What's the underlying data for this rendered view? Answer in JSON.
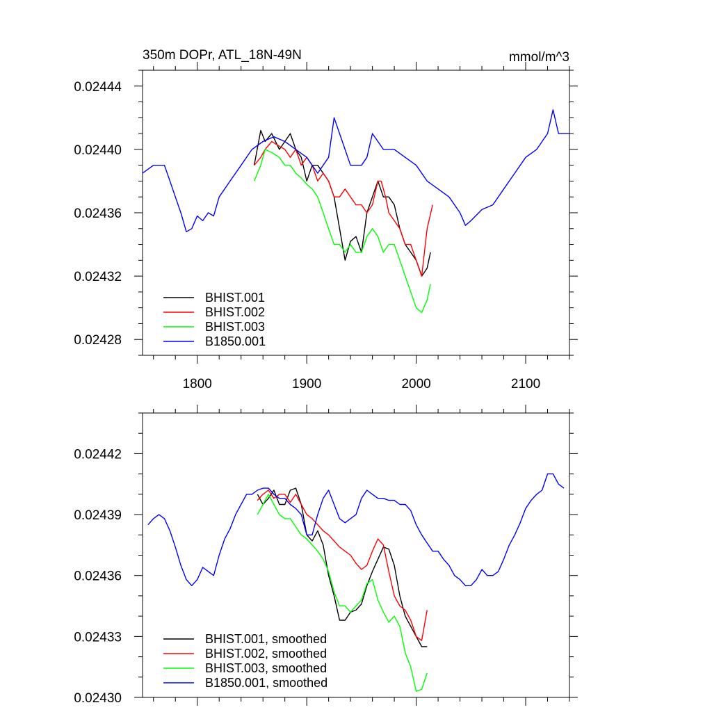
{
  "colors": {
    "BHIST.001": "#000000",
    "BHIST.002": "#ff0000",
    "BHIST.003": "#00ff00",
    "B1850.001": "#0000ff"
  },
  "chart_data": [
    {
      "type": "line",
      "title": "350m DOPr, ATL_18N-49N",
      "units": "mmol/m^3",
      "xlabel": "",
      "ylabel": "",
      "xlim": [
        1750,
        2140
      ],
      "ylim": [
        0.02427,
        0.02445
      ],
      "x_ticks": [
        1800,
        1900,
        2000,
        2100
      ],
      "x_tick_labels": [
        "1800",
        "1900",
        "2000",
        "2100"
      ],
      "y_ticks": [
        0.02428,
        0.02432,
        0.02436,
        0.0244,
        0.02444
      ],
      "y_tick_labels": [
        "0.02428",
        "0.02432",
        "0.02436",
        "0.02440",
        "0.02444"
      ],
      "grid": false,
      "legend_position": "bottom-left",
      "series": [
        {
          "name": "BHIST.001",
          "color": "#000000",
          "x": [
            1852,
            1858,
            1862,
            1868,
            1875,
            1880,
            1885,
            1890,
            1895,
            1900,
            1905,
            1910,
            1915,
            1920,
            1925,
            1930,
            1935,
            1940,
            1945,
            1950,
            1955,
            1960,
            1965,
            1970,
            1975,
            1980,
            1985,
            1990,
            1995,
            2000,
            2005,
            2010,
            2013
          ],
          "y": [
            0.02439,
            0.024412,
            0.024405,
            0.02441,
            0.0244,
            0.024405,
            0.02441,
            0.0244,
            0.024395,
            0.02438,
            0.02439,
            0.02439,
            0.024385,
            0.02438,
            0.02437,
            0.02435,
            0.02433,
            0.024342,
            0.024345,
            0.024335,
            0.02436,
            0.02437,
            0.02438,
            0.02437,
            0.02437,
            0.024365,
            0.02435,
            0.02434,
            0.024335,
            0.02433,
            0.02432,
            0.024325,
            0.024335
          ]
        },
        {
          "name": "BHIST.002",
          "color": "#ff0000",
          "x": [
            1852,
            1858,
            1862,
            1868,
            1875,
            1880,
            1885,
            1890,
            1895,
            1900,
            1905,
            1910,
            1915,
            1920,
            1925,
            1930,
            1935,
            1940,
            1945,
            1950,
            1955,
            1960,
            1965,
            1968,
            1972,
            1975,
            1980,
            1985,
            1990,
            1995,
            2000,
            2005,
            2010,
            2015
          ],
          "y": [
            0.02439,
            0.024395,
            0.0244,
            0.024405,
            0.024402,
            0.0244,
            0.024395,
            0.0244,
            0.02439,
            0.024395,
            0.02439,
            0.02438,
            0.024385,
            0.02438,
            0.02437,
            0.02437,
            0.024375,
            0.02437,
            0.024365,
            0.024365,
            0.02436,
            0.024365,
            0.02438,
            0.02438,
            0.02437,
            0.02436,
            0.024355,
            0.02435,
            0.02434,
            0.02434,
            0.02433,
            0.02432,
            0.02435,
            0.024365
          ]
        },
        {
          "name": "BHIST.003",
          "color": "#00ff00",
          "x": [
            1852,
            1858,
            1862,
            1868,
            1875,
            1880,
            1885,
            1890,
            1895,
            1900,
            1905,
            1910,
            1915,
            1920,
            1925,
            1930,
            1935,
            1940,
            1945,
            1950,
            1955,
            1960,
            1965,
            1970,
            1975,
            1980,
            1985,
            1990,
            1995,
            2000,
            2005,
            2010,
            2013
          ],
          "y": [
            0.02438,
            0.02439,
            0.0244,
            0.024398,
            0.024395,
            0.02439,
            0.02439,
            0.024385,
            0.024382,
            0.024378,
            0.024375,
            0.02437,
            0.02436,
            0.02435,
            0.02434,
            0.02434,
            0.024335,
            0.02434,
            0.024335,
            0.024335,
            0.024345,
            0.02435,
            0.024345,
            0.024335,
            0.02434,
            0.02434,
            0.02433,
            0.02432,
            0.02431,
            0.0243,
            0.024297,
            0.024305,
            0.024315
          ]
        },
        {
          "name": "B1850.001",
          "color": "#0000ff",
          "x": [
            1750,
            1760,
            1770,
            1775,
            1780,
            1785,
            1790,
            1795,
            1800,
            1805,
            1810,
            1815,
            1820,
            1825,
            1830,
            1840,
            1850,
            1860,
            1870,
            1880,
            1890,
            1900,
            1910,
            1920,
            1925,
            1930,
            1940,
            1950,
            1955,
            1960,
            1970,
            1980,
            1990,
            2000,
            2010,
            2020,
            2030,
            2040,
            2045,
            2050,
            2060,
            2070,
            2080,
            2090,
            2100,
            2110,
            2120,
            2125,
            2130,
            2135,
            2140
          ],
          "y": [
            0.024385,
            0.02439,
            0.02439,
            0.02438,
            0.02437,
            0.02436,
            0.024348,
            0.02435,
            0.024358,
            0.024355,
            0.02436,
            0.024358,
            0.02437,
            0.024375,
            0.02438,
            0.02439,
            0.0244,
            0.024405,
            0.024408,
            0.024405,
            0.0244,
            0.024395,
            0.024385,
            0.024395,
            0.02442,
            0.02441,
            0.02439,
            0.02439,
            0.024395,
            0.02441,
            0.0244,
            0.0244,
            0.024395,
            0.02439,
            0.02438,
            0.024375,
            0.02437,
            0.02436,
            0.024352,
            0.024355,
            0.024362,
            0.024365,
            0.024375,
            0.024385,
            0.024395,
            0.0244,
            0.02441,
            0.024425,
            0.02441,
            0.02441,
            0.02441
          ]
        }
      ]
    },
    {
      "type": "line",
      "title": "",
      "xlabel": "",
      "ylabel": "",
      "xlim": [
        1750,
        2140
      ],
      "ylim": [
        0.0243,
        0.02444
      ],
      "x_ticks": [
        1800,
        1900,
        2000,
        2100
      ],
      "x_tick_labels": [],
      "y_ticks": [
        0.0243,
        0.02433,
        0.02436,
        0.02439,
        0.02442
      ],
      "y_tick_labels": [
        "0.02430",
        "0.02433",
        "0.02436",
        "0.02439",
        "0.02442"
      ],
      "grid": false,
      "legend_position": "bottom-left",
      "series": [
        {
          "name": "BHIST.001, smoothed",
          "color": "#000000",
          "x": [
            1855,
            1860,
            1865,
            1870,
            1875,
            1880,
            1885,
            1890,
            1895,
            1900,
            1905,
            1910,
            1915,
            1920,
            1925,
            1930,
            1935,
            1940,
            1945,
            1950,
            1955,
            1960,
            1965,
            1970,
            1975,
            1980,
            1985,
            1990,
            1995,
            2000,
            2005,
            2010
          ],
          "y": [
            0.0244,
            0.024395,
            0.024398,
            0.024402,
            0.024395,
            0.024395,
            0.024402,
            0.024403,
            0.024395,
            0.02438,
            0.024377,
            0.024382,
            0.024375,
            0.02436,
            0.02435,
            0.024338,
            0.024338,
            0.024342,
            0.024343,
            0.024346,
            0.024355,
            0.024362,
            0.024368,
            0.024374,
            0.024373,
            0.024365,
            0.02435,
            0.02434,
            0.024335,
            0.02433,
            0.024325,
            0.024325
          ]
        },
        {
          "name": "BHIST.002, smoothed",
          "color": "#ff0000",
          "x": [
            1855,
            1860,
            1865,
            1870,
            1875,
            1880,
            1885,
            1890,
            1895,
            1900,
            1905,
            1910,
            1915,
            1920,
            1925,
            1930,
            1935,
            1940,
            1945,
            1950,
            1955,
            1960,
            1965,
            1970,
            1975,
            1980,
            1985,
            1990,
            1995,
            2000,
            2005,
            2010
          ],
          "y": [
            0.024397,
            0.0244,
            0.024402,
            0.024398,
            0.0244,
            0.0244,
            0.024396,
            0.0244,
            0.024395,
            0.02439,
            0.024388,
            0.024385,
            0.024382,
            0.02438,
            0.024377,
            0.024374,
            0.024372,
            0.02437,
            0.024366,
            0.024363,
            0.024365,
            0.024372,
            0.024378,
            0.024375,
            0.024362,
            0.02435,
            0.024345,
            0.024343,
            0.024338,
            0.02433,
            0.024328,
            0.024343
          ]
        },
        {
          "name": "BHIST.003, smoothed",
          "color": "#00ff00",
          "x": [
            1855,
            1860,
            1865,
            1870,
            1875,
            1880,
            1885,
            1890,
            1895,
            1900,
            1905,
            1910,
            1915,
            1920,
            1925,
            1930,
            1935,
            1940,
            1945,
            1950,
            1955,
            1960,
            1965,
            1970,
            1975,
            1980,
            1985,
            1990,
            1995,
            2000,
            2005,
            2010
          ],
          "y": [
            0.02439,
            0.024395,
            0.0244,
            0.024395,
            0.02439,
            0.024388,
            0.024388,
            0.024384,
            0.02438,
            0.024378,
            0.024375,
            0.024372,
            0.024368,
            0.024362,
            0.024352,
            0.024345,
            0.024345,
            0.024342,
            0.024345,
            0.024348,
            0.024356,
            0.024358,
            0.024348,
            0.024342,
            0.024337,
            0.02434,
            0.024335,
            0.024322,
            0.024315,
            0.024303,
            0.024304,
            0.024312
          ]
        },
        {
          "name": "B1850.001, smoothed",
          "color": "#0000ff",
          "x": [
            1755,
            1760,
            1765,
            1770,
            1775,
            1780,
            1785,
            1790,
            1795,
            1800,
            1805,
            1810,
            1815,
            1820,
            1825,
            1830,
            1835,
            1840,
            1845,
            1850,
            1855,
            1860,
            1865,
            1870,
            1875,
            1880,
            1885,
            1890,
            1895,
            1900,
            1905,
            1910,
            1915,
            1920,
            1925,
            1930,
            1935,
            1940,
            1945,
            1950,
            1955,
            1960,
            1965,
            1970,
            1975,
            1980,
            1985,
            1990,
            1995,
            2000,
            2005,
            2010,
            2015,
            2020,
            2025,
            2030,
            2035,
            2040,
            2045,
            2050,
            2055,
            2060,
            2065,
            2070,
            2075,
            2080,
            2085,
            2090,
            2095,
            2100,
            2105,
            2110,
            2115,
            2120,
            2125,
            2130,
            2135
          ],
          "y": [
            0.024385,
            0.024388,
            0.02439,
            0.024388,
            0.024382,
            0.024374,
            0.024365,
            0.024358,
            0.024355,
            0.024358,
            0.024364,
            0.024362,
            0.02436,
            0.02437,
            0.024378,
            0.024383,
            0.02439,
            0.024395,
            0.0244,
            0.0244,
            0.024402,
            0.024403,
            0.024403,
            0.0244,
            0.024398,
            0.024398,
            0.024395,
            0.024393,
            0.02439,
            0.02438,
            0.02438,
            0.02439,
            0.024398,
            0.024402,
            0.024395,
            0.024388,
            0.024386,
            0.024388,
            0.02439,
            0.024398,
            0.024402,
            0.0244,
            0.024398,
            0.024398,
            0.024397,
            0.024397,
            0.024395,
            0.024395,
            0.024392,
            0.024385,
            0.02438,
            0.024376,
            0.024372,
            0.024372,
            0.024368,
            0.024365,
            0.02436,
            0.024358,
            0.024355,
            0.024355,
            0.024358,
            0.024363,
            0.02436,
            0.02436,
            0.024362,
            0.024368,
            0.024375,
            0.02438,
            0.024386,
            0.024393,
            0.024397,
            0.0244,
            0.024402,
            0.02441,
            0.02441,
            0.024405,
            0.024403
          ]
        }
      ]
    }
  ]
}
